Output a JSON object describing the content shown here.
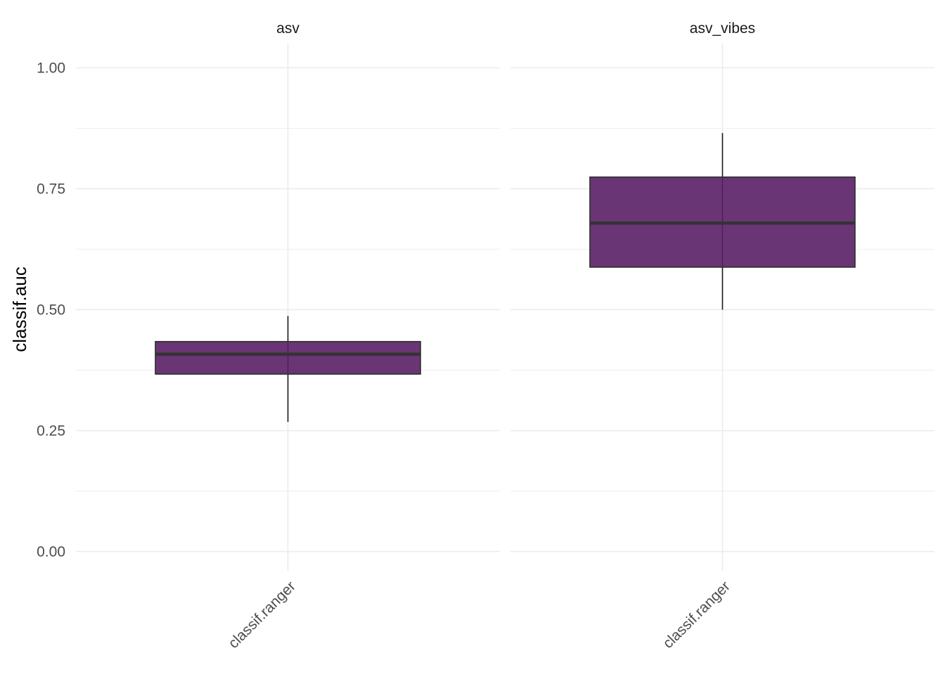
{
  "chart_data": {
    "type": "box",
    "ylabel": "classif.auc",
    "ylim": [
      -0.04,
      1.05
    ],
    "y_ticks": [
      {
        "value": 0.0,
        "label": "0.00"
      },
      {
        "value": 0.25,
        "label": "0.25"
      },
      {
        "value": 0.5,
        "label": "0.50"
      },
      {
        "value": 0.75,
        "label": "0.75"
      },
      {
        "value": 1.0,
        "label": "1.00"
      }
    ],
    "y_minor_ticks": [
      0.125,
      0.375,
      0.625,
      0.875
    ],
    "grid": true,
    "fill_color": "#5a1f66",
    "outline_color": "#333333",
    "facets": [
      {
        "strip": "asv",
        "category": "classif.ranger",
        "whisker_low": 0.268,
        "q1": 0.367,
        "median": 0.408,
        "q3": 0.434,
        "whisker_high": 0.487
      },
      {
        "strip": "asv_vibes",
        "category": "classif.ranger",
        "whisker_low": 0.5,
        "q1": 0.588,
        "median": 0.679,
        "q3": 0.774,
        "whisker_high": 0.865
      }
    ]
  }
}
